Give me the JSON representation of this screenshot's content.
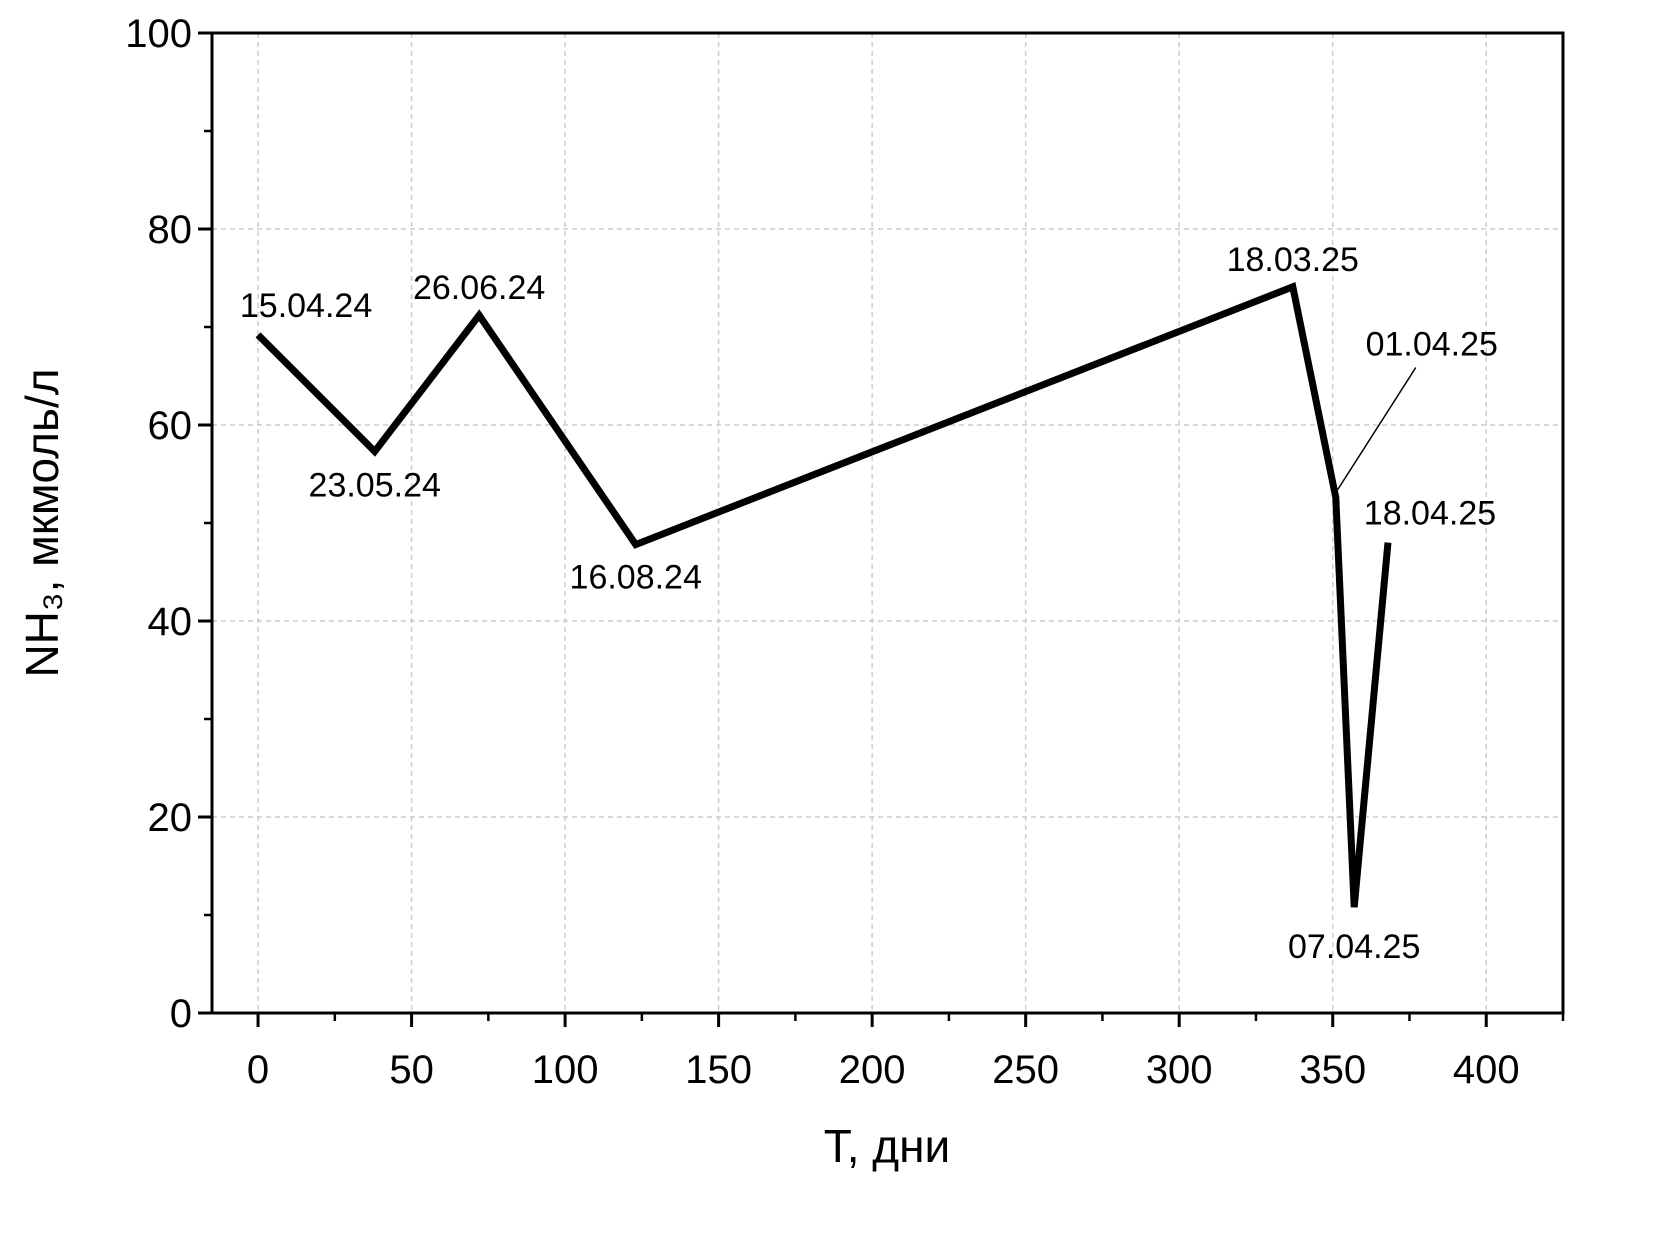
{
  "chart_data": {
    "type": "line",
    "title": "",
    "xlabel": "T, дни",
    "ylabel": "NH₃, мкмоль/л",
    "xlim": [
      -15,
      425
    ],
    "ylim": [
      0,
      100
    ],
    "xticks": [
      0,
      50,
      100,
      150,
      200,
      250,
      300,
      350,
      400
    ],
    "yticks": [
      0,
      20,
      40,
      60,
      80,
      100
    ],
    "grid": true,
    "series": [
      {
        "name": "NH3",
        "color": "#000000",
        "x": [
          0,
          38,
          72,
          123,
          337,
          351,
          357,
          368
        ],
        "y": [
          69.2,
          57.3,
          71.2,
          47.8,
          74.1,
          52.6,
          10.8,
          48.0
        ],
        "labels": [
          "15.04.24",
          "23.05.24",
          "26.06.24",
          "16.08.24",
          "18.03.25",
          "01.04.25",
          "07.04.25",
          "18.04.25"
        ]
      }
    ]
  }
}
